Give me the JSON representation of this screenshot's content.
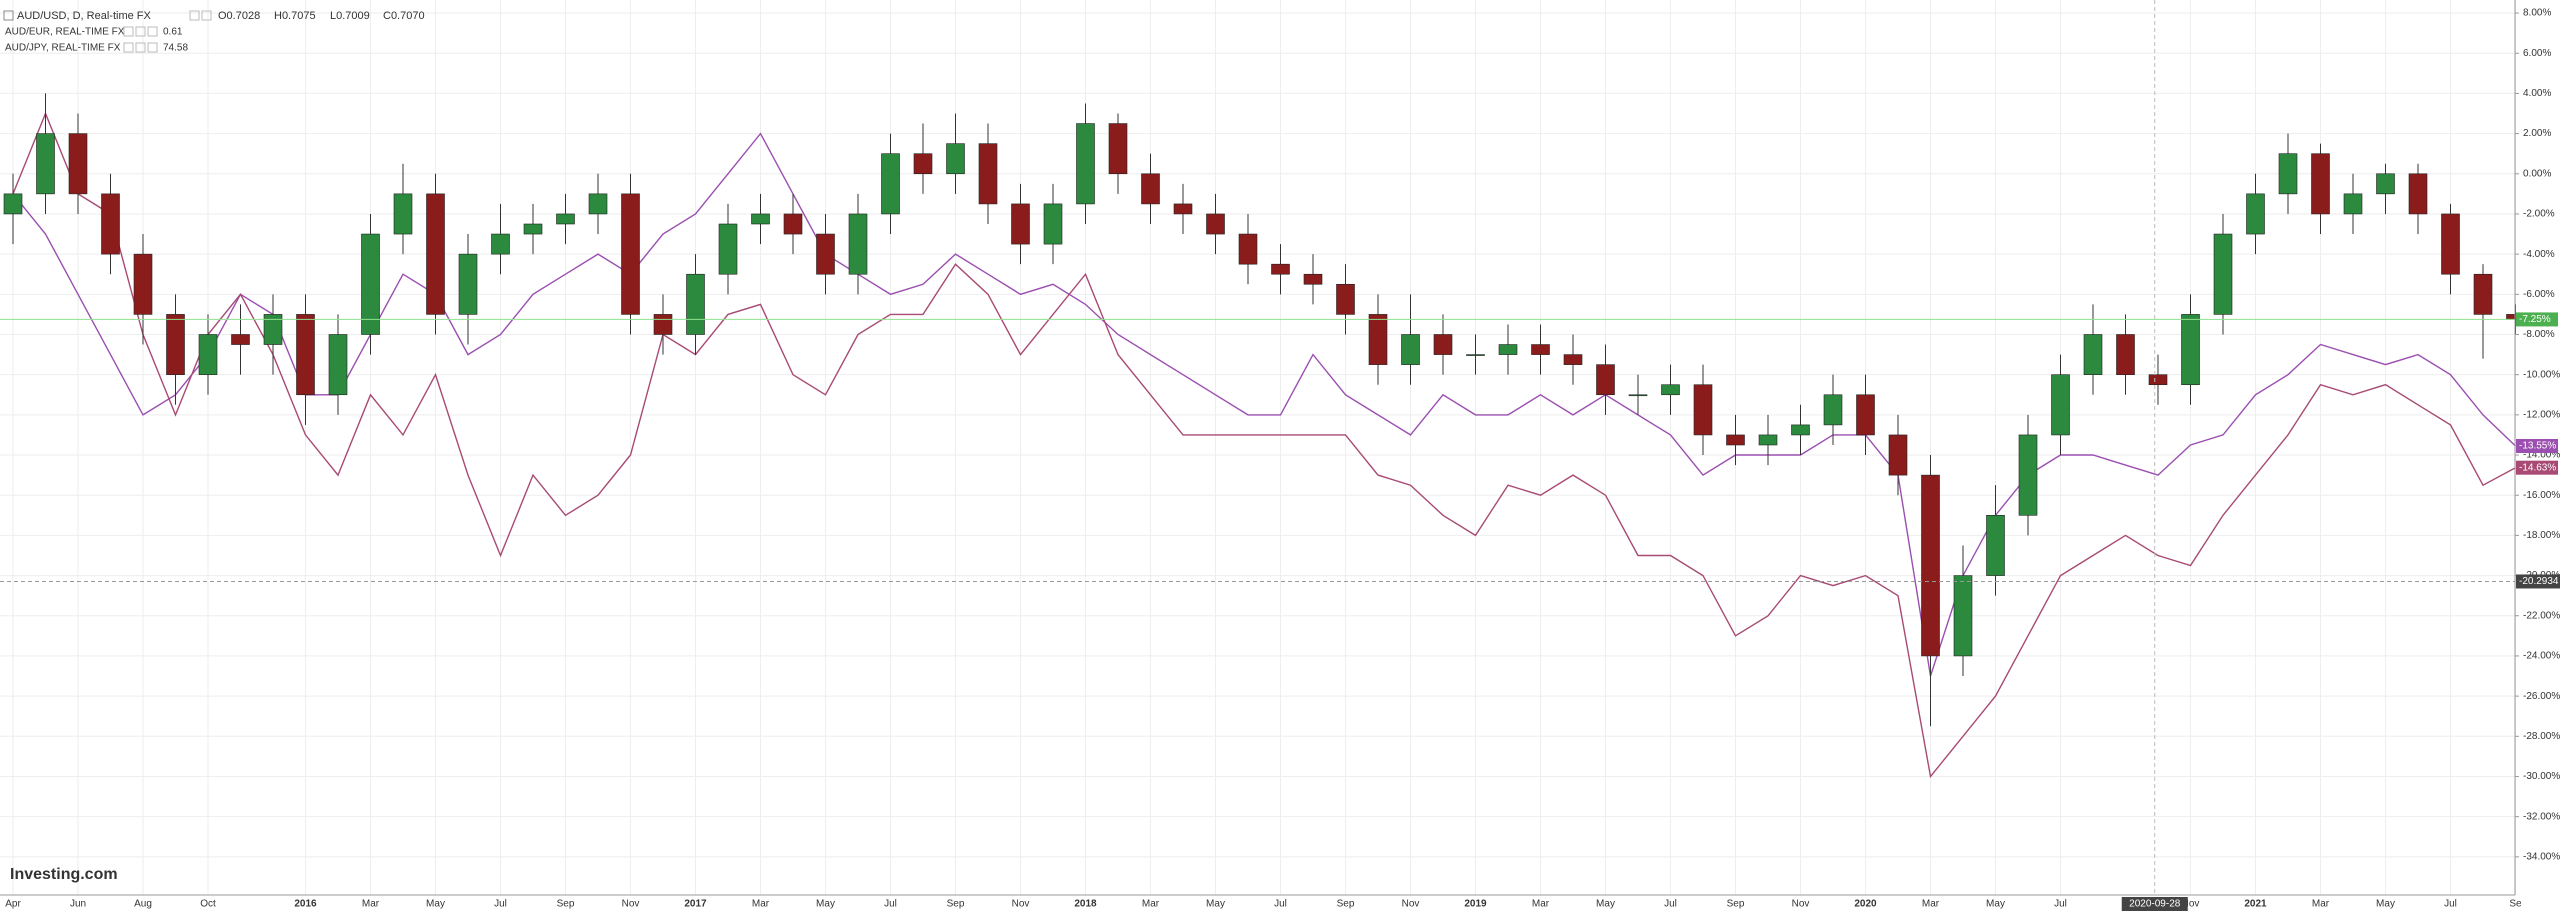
{
  "chart_data": {
    "type": "candlestick",
    "categories": [
      "Apr",
      null,
      "Jun",
      null,
      "Aug",
      null,
      "Oct",
      null,
      null,
      "2016",
      null,
      "Mar",
      null,
      "May",
      null,
      "Jul",
      null,
      "Sep",
      null,
      "Nov",
      null,
      "2017",
      null,
      "Mar",
      null,
      "May",
      null,
      "Jul",
      null,
      "Sep",
      null,
      "Nov",
      null,
      "2018",
      null,
      "Mar",
      null,
      "May",
      null,
      "Jul",
      null,
      "Sep",
      null,
      "Nov",
      null,
      "2019",
      null,
      "Mar",
      null,
      "May",
      null,
      "Jul",
      null,
      "Sep",
      null,
      "Nov",
      null,
      "2020",
      null,
      "Mar",
      null,
      "May",
      null,
      "Jul",
      null,
      null,
      null,
      "Nov",
      null,
      "2021",
      null,
      "Mar",
      null,
      "May",
      null,
      "Jul",
      null,
      "Se"
    ],
    "series": [
      {
        "name": "AUD/USD, D, Real-time FX",
        "type": "candlestick",
        "up_color": "#2b8a3e",
        "down_color": "#8b1c1c",
        "legend_ohlc": [
          "O0.7028",
          "H0.7075",
          "L0.7009",
          "C0.7070"
        ],
        "open": [
          -2,
          -1,
          2,
          -1,
          -4,
          -7,
          -10,
          -8,
          -8.5,
          -7,
          -11,
          -8,
          -3,
          -1,
          -7,
          -4,
          -3,
          -2.5,
          -2,
          -1,
          -7,
          -8,
          -5,
          -2.5,
          -2,
          -3,
          -5,
          -2,
          1,
          0,
          1.5,
          -1.5,
          -3.5,
          -1.5,
          2.5,
          0,
          -1.5,
          -2,
          -3,
          -4.5,
          -5,
          -5.5,
          -7,
          -9.5,
          -8,
          -9,
          -9,
          -8.5,
          -9,
          -9.5,
          -11,
          -11,
          -10.5,
          -13,
          -13.5,
          -13,
          -12.5,
          -11,
          -13,
          -15,
          -24,
          -20,
          -17,
          -13,
          -10,
          -8,
          -10,
          -10.5,
          -7,
          -3,
          -1,
          1,
          -2,
          -1,
          0,
          -2,
          -5,
          -7
        ],
        "high": [
          0,
          4,
          3,
          0,
          -3,
          -6,
          -7,
          -6.5,
          -6,
          -6,
          -7,
          -2,
          0.5,
          0,
          -3,
          -1.5,
          -1.5,
          -1,
          0,
          0,
          -6,
          -4,
          -1.5,
          -1,
          -1,
          -2,
          -1,
          2,
          2.5,
          3,
          2.5,
          -0.5,
          -0.5,
          3.5,
          3,
          1,
          -0.5,
          -1,
          -2,
          -3.5,
          -4,
          -4.5,
          -6,
          -6,
          -7,
          -8,
          -7.5,
          -7.5,
          -8,
          -8.5,
          -10,
          -9.5,
          -9.5,
          -12,
          -12,
          -11.5,
          -10,
          -10,
          -12,
          -14,
          -18.5,
          -15.5,
          -12,
          -9,
          -6.5,
          -7,
          -9,
          -6,
          -2,
          0,
          2,
          1.5,
          0,
          0.5,
          0.5,
          -1.5,
          -4.5,
          -6.5
        ],
        "low": [
          -3.5,
          -2,
          -2,
          -5,
          -8.5,
          -11.5,
          -11,
          -10,
          -10,
          -12.5,
          -12,
          -9,
          -4,
          -8,
          -8.5,
          -5,
          -4,
          -3.5,
          -3,
          -8,
          -9,
          -9,
          -6,
          -3.5,
          -4,
          -6,
          -6,
          -3,
          -1,
          -1,
          -2.5,
          -4.5,
          -4.5,
          -2.5,
          -1,
          -2.5,
          -3,
          -4,
          -5.5,
          -6,
          -6.5,
          -8,
          -10.5,
          -10.5,
          -10,
          -10,
          -10,
          -10,
          -10.5,
          -12,
          -12,
          -12,
          -14,
          -14.5,
          -14.5,
          -14,
          -13.5,
          -14,
          -16,
          -27.5,
          -25,
          -21,
          -18,
          -14,
          -11,
          -11,
          -11.5,
          -11.5,
          -8,
          -4,
          -2,
          -3,
          -3,
          -2,
          -3,
          -6,
          -9.2,
          -8
        ],
        "close": [
          -1,
          2,
          -1,
          -4,
          -7,
          -10,
          -8,
          -8.5,
          -7,
          -11,
          -8,
          -3,
          -1,
          -7,
          -4,
          -3,
          -2.5,
          -2,
          -1,
          -7,
          -8,
          -5,
          -2.5,
          -2,
          -3,
          -5,
          -2,
          1,
          0,
          1.5,
          -1.5,
          -3.5,
          -1.5,
          2.5,
          0,
          -1.5,
          -2,
          -3,
          -4.5,
          -5,
          -5.5,
          -7,
          -9.5,
          -8,
          -9,
          -9,
          -8.5,
          -9,
          -9.5,
          -11,
          -11,
          -10.5,
          -13,
          -13.5,
          -13,
          -12.5,
          -11,
          -13,
          -15,
          -24,
          -20,
          -17,
          -13,
          -10,
          -8,
          -10,
          -10.5,
          -7,
          -3,
          -1,
          1,
          -2,
          -1,
          0,
          -2,
          -5,
          -7,
          -7.25
        ],
        "last": {
          "value": -7.25,
          "label": "-7.25%"
        },
        "last_color": "#4caf50"
      },
      {
        "name": "AUD/EUR, REAL-TIME FX",
        "type": "line",
        "color": "#9b4fb0",
        "legend_value": 0.61,
        "values": [
          -1,
          -3,
          -6,
          -9,
          -12,
          -11,
          -9,
          -6,
          -7,
          -11,
          -11,
          -8,
          -5,
          -6,
          -9,
          -8,
          -6,
          -5,
          -4,
          -5,
          -3,
          -2,
          0,
          2,
          -1,
          -4,
          -5,
          -6,
          -5.5,
          -4,
          -5,
          -6,
          -5.5,
          -6.5,
          -8,
          -9,
          -10,
          -11,
          -12,
          -12,
          -9,
          -11,
          -12,
          -13,
          -11,
          -12,
          -12,
          -11,
          -12,
          -11,
          -12,
          -13,
          -15,
          -14,
          -14,
          -14,
          -13,
          -13,
          -15,
          -25,
          -20,
          -17,
          -15,
          -14,
          -14,
          -14.5,
          -15,
          -13.5,
          -13,
          -11,
          -10,
          -8.5,
          -9,
          -9.5,
          -9,
          -10,
          -12,
          -13.55
        ],
        "last": {
          "value": -13.55,
          "label": "-13.55%"
        }
      },
      {
        "name": "AUD/JPY, REAL-TIME FX",
        "type": "line",
        "color": "#a84a74",
        "legend_value": 74.58,
        "values": [
          -1,
          3,
          -1,
          -2,
          -8,
          -12,
          -8,
          -6,
          -9,
          -13,
          -15,
          -11,
          -13,
          -10,
          -15,
          -19,
          -15,
          -17,
          -16,
          -14,
          -8,
          -9,
          -7,
          -6.5,
          -10,
          -11,
          -8,
          -7,
          -7,
          -4.5,
          -6,
          -9,
          -7,
          -5,
          -9,
          -11,
          -13,
          -13,
          -13,
          -13,
          -13,
          -13,
          -15,
          -15.5,
          -17,
          -18,
          -15.5,
          -16,
          -15,
          -16,
          -19,
          -19,
          -20,
          -23,
          -22,
          -20,
          -20.5,
          -20,
          -21,
          -30,
          -28,
          -26,
          -23,
          -20,
          -19,
          -18,
          -19,
          -19.5,
          -17,
          -15,
          -13,
          -10.5,
          -11,
          -10.5,
          -11.5,
          -12.5,
          -15.5,
          -14.63
        ],
        "last": {
          "value": -14.63,
          "label": "-14.63%"
        }
      }
    ],
    "ylim": [
      -35.9,
      8.65
    ],
    "yticks": [
      {
        "value": 8,
        "label": "8.00%"
      },
      {
        "value": 6,
        "label": "6.00%"
      },
      {
        "value": 4,
        "label": "4.00%"
      },
      {
        "value": 2,
        "label": "2.00%"
      },
      {
        "value": 0,
        "label": "0.00%"
      },
      {
        "value": -2,
        "label": "-2.00%"
      },
      {
        "value": -4,
        "label": "-4.00%"
      },
      {
        "value": -6,
        "label": "-6.00%"
      },
      {
        "value": -8,
        "label": "-8.00%"
      },
      {
        "value": -10,
        "label": "-10.00%"
      },
      {
        "value": -12,
        "label": "-12.00%"
      },
      {
        "value": -14,
        "label": "-14.00%"
      },
      {
        "value": -16,
        "label": "-16.00%"
      },
      {
        "value": -18,
        "label": "-18.00%"
      },
      {
        "value": -20,
        "label": "-20.00%"
      },
      {
        "value": -22,
        "label": "-22.00%"
      },
      {
        "value": -24,
        "label": "-24.00%"
      },
      {
        "value": -26,
        "label": "-26.00%"
      },
      {
        "value": -28,
        "label": "-28.00%"
      },
      {
        "value": -30,
        "label": "-30.00%"
      },
      {
        "value": -32,
        "label": "-32.00%"
      },
      {
        "value": -34,
        "label": "-34.00%"
      }
    ],
    "grid": true,
    "crosshair": {
      "y": {
        "value": -20.2934,
        "label": "-20.2934"
      },
      "x_label": "2020-09-28"
    },
    "logo": "Investing.com"
  }
}
